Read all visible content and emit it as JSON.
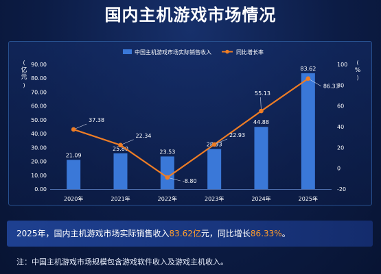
{
  "header": {
    "title": "国内主机游戏市场情况"
  },
  "summary": {
    "prefix": "2025年，国内主机游戏市场实际销售收入",
    "revenue": "83.62亿",
    "middle": "元，同比增长",
    "growth": "86.33%",
    "suffix": "。"
  },
  "footnote": {
    "text": "注：中国主机游戏市场规模包含游戏软件收入及游戏主机收入。"
  },
  "colors": {
    "bar": "#3a78d8",
    "line": "#ee7d25",
    "highlight": "#ff9d2f"
  },
  "chart_data": {
    "type": "bar",
    "categories": [
      "2020年",
      "2021年",
      "2022年",
      "2023年",
      "2024年",
      "2025年"
    ],
    "series": [
      {
        "name": "中国主机游戏市场实际销售收入",
        "type": "bar",
        "axis": "left",
        "values": [
          21.09,
          25.8,
          23.53,
          28.93,
          44.88,
          83.62
        ]
      },
      {
        "name": "同比增长率",
        "type": "line",
        "axis": "right",
        "values": [
          37.38,
          22.34,
          -8.8,
          22.93,
          55.13,
          86.33
        ]
      }
    ],
    "y_left": {
      "label": "亿元",
      "range": [
        0,
        90
      ],
      "ticks": [
        "0.00",
        "10.00",
        "20.00",
        "30.00",
        "40.00",
        "50.00",
        "60.00",
        "70.00",
        "80.00",
        "90.00"
      ]
    },
    "y_right": {
      "label": "%",
      "range": [
        -20,
        100
      ],
      "ticks": [
        "-20",
        "0",
        "20",
        "40",
        "60",
        "80",
        "100"
      ]
    },
    "bar_labels": [
      "21.09",
      "25.80",
      "23.53",
      "28.93",
      "44.88",
      "83.62"
    ],
    "line_labels": [
      "37.38",
      "22.34",
      "-8.80",
      "22.93",
      "55.13",
      "86.33"
    ],
    "legend_position": "top",
    "grid": false
  }
}
